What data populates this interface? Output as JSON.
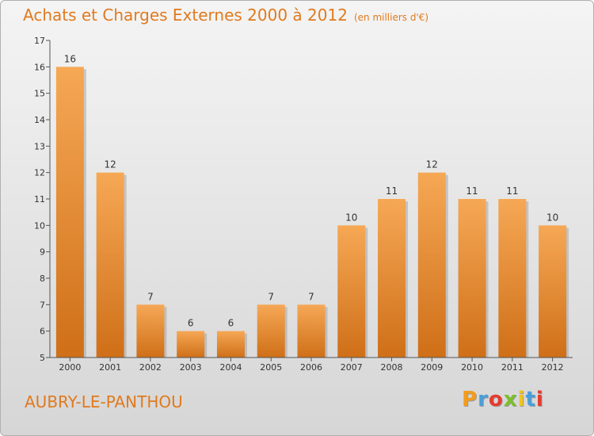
{
  "header": {
    "title": "Achats et Charges Externes 2000 à 2012",
    "subtitle": "(en milliers d'€)"
  },
  "footer": {
    "commune": "AUBRY-LE-PANTHOU",
    "logo_letters": [
      "P",
      "r",
      "o",
      "x",
      "i",
      "t",
      "i"
    ],
    "logo_colors": [
      "#f29c1f",
      "#4a9fd8",
      "#e63b2e",
      "#7bbf2a",
      "#f2c51f",
      "#4a9fd8",
      "#e63b2e"
    ]
  },
  "chart_data": {
    "type": "bar",
    "categories": [
      "2000",
      "2001",
      "2002",
      "2003",
      "2004",
      "2005",
      "2006",
      "2007",
      "2008",
      "2009",
      "2010",
      "2011",
      "2012"
    ],
    "values": [
      16,
      12,
      7,
      6,
      6,
      7,
      7,
      10,
      11,
      12,
      11,
      11,
      10
    ],
    "title": "Achats et Charges Externes 2000 à 2012",
    "ylim": [
      5,
      17
    ],
    "yticks": [
      5,
      6,
      7,
      8,
      9,
      10,
      11,
      12,
      13,
      14,
      15,
      16,
      17
    ],
    "grid": false,
    "bar_color_top": "#f6a855",
    "bar_color_bottom": "#cf6f18"
  }
}
